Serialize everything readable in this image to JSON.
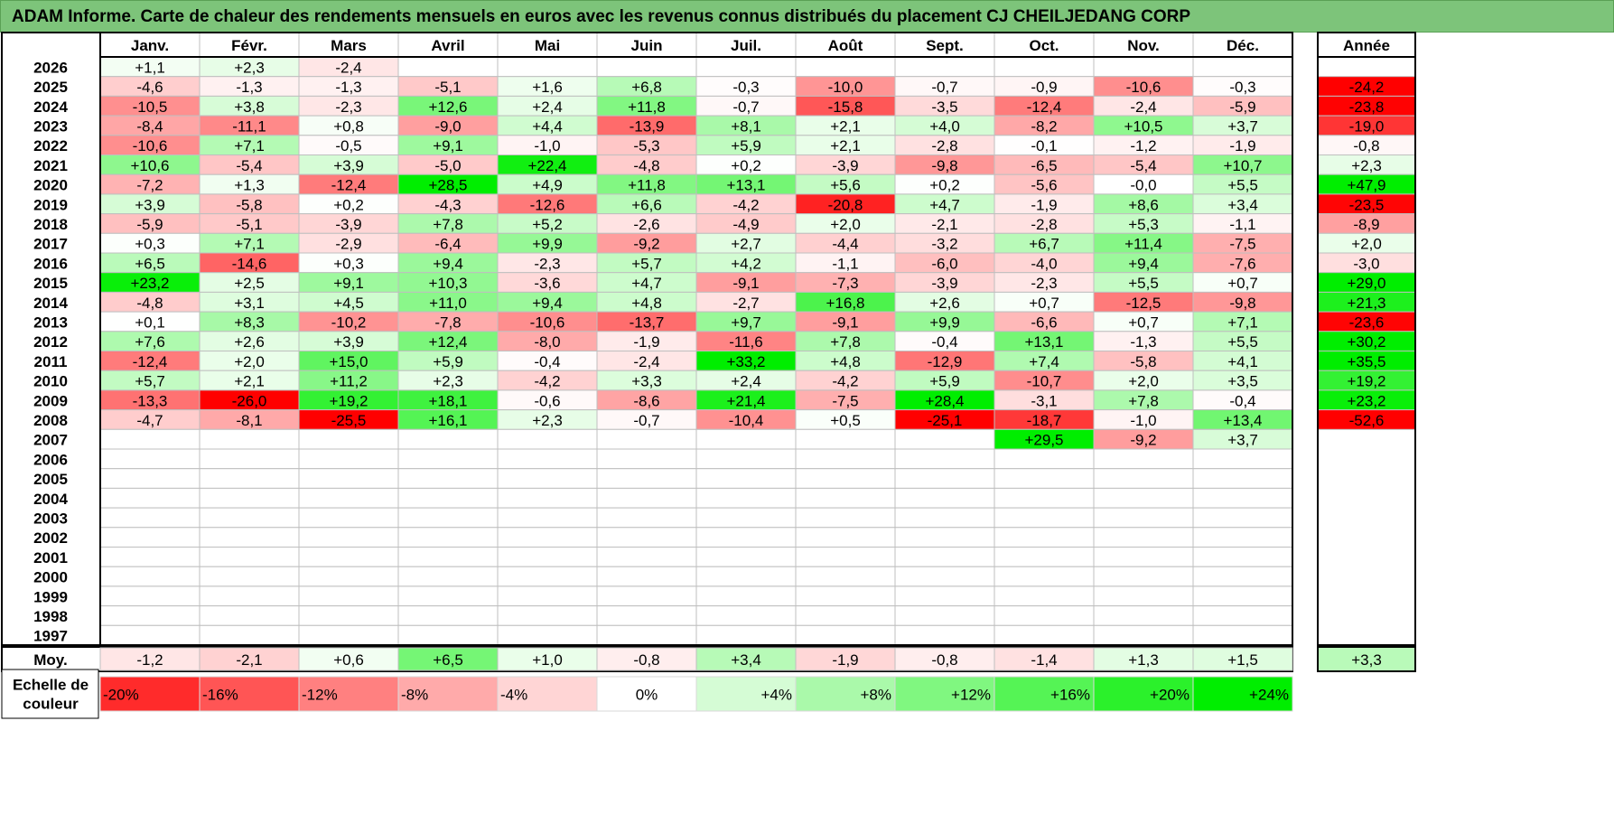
{
  "title": "ADAM Informe. Carte de chaleur des rendements mensuels en euros avec les revenus connus distribués du placement CJ CHEILJEDANG CORP",
  "chart_data": {
    "type": "heatmap",
    "months": [
      "Janv.",
      "Févr.",
      "Mars",
      "Avril",
      "Mai",
      "Juin",
      "Juil.",
      "Août",
      "Sept.",
      "Oct.",
      "Nov.",
      "Déc."
    ],
    "year_header": "Année",
    "years": [
      "2026",
      "2025",
      "2024",
      "2023",
      "2022",
      "2021",
      "2020",
      "2019",
      "2018",
      "2017",
      "2016",
      "2015",
      "2014",
      "2013",
      "2012",
      "2011",
      "2010",
      "2009",
      "2008",
      "2007",
      "2006",
      "2005",
      "2004",
      "2003",
      "2002",
      "2001",
      "2000",
      "1999",
      "1998",
      "1997"
    ],
    "values": [
      [
        "+1,1",
        "+2,3",
        "-2,4",
        "",
        "",
        "",
        "",
        "",
        "",
        "",
        "",
        ""
      ],
      [
        "-4,6",
        "-1,3",
        "-1,3",
        "-5,1",
        "+1,6",
        "+6,8",
        "-0,3",
        "-10,0",
        "-0,7",
        "-0,9",
        "-10,6",
        "-0,3"
      ],
      [
        "-10,5",
        "+3,8",
        "-2,3",
        "+12,6",
        "+2,4",
        "+11,8",
        "-0,7",
        "-15,8",
        "-3,5",
        "-12,4",
        "-2,4",
        "-5,9"
      ],
      [
        "-8,4",
        "-11,1",
        "+0,8",
        "-9,0",
        "+4,4",
        "-13,9",
        "+8,1",
        "+2,1",
        "+4,0",
        "-8,2",
        "+10,5",
        "+3,7"
      ],
      [
        "-10,6",
        "+7,1",
        "-0,5",
        "+9,1",
        "-1,0",
        "-5,3",
        "+5,9",
        "+2,1",
        "-2,8",
        "-0,1",
        "-1,2",
        "-1,9"
      ],
      [
        "+10,6",
        "-5,4",
        "+3,9",
        "-5,0",
        "+22,4",
        "-4,8",
        "+0,2",
        "-3,9",
        "-9,8",
        "-6,5",
        "-5,4",
        "+10,7"
      ],
      [
        "-7,2",
        "+1,3",
        "-12,4",
        "+28,5",
        "+4,9",
        "+11,8",
        "+13,1",
        "+5,6",
        "+0,2",
        "-5,6",
        "-0,0",
        "+5,5"
      ],
      [
        "+3,9",
        "-5,8",
        "+0,2",
        "-4,3",
        "-12,6",
        "+6,6",
        "-4,2",
        "-20,8",
        "+4,7",
        "-1,9",
        "+8,6",
        "+3,4"
      ],
      [
        "-5,9",
        "-5,1",
        "-3,9",
        "+7,8",
        "+5,2",
        "-2,6",
        "-4,9",
        "+2,0",
        "-2,1",
        "-2,8",
        "+5,3",
        "-1,1"
      ],
      [
        "+0,3",
        "+7,1",
        "-2,9",
        "-6,4",
        "+9,9",
        "-9,2",
        "+2,7",
        "-4,4",
        "-3,2",
        "+6,7",
        "+11,4",
        "-7,5"
      ],
      [
        "+6,5",
        "-14,6",
        "+0,3",
        "+9,4",
        "-2,3",
        "+5,7",
        "+4,2",
        "-1,1",
        "-6,0",
        "-4,0",
        "+9,4",
        "-7,6"
      ],
      [
        "+23,2",
        "+2,5",
        "+9,1",
        "+10,3",
        "-3,6",
        "+4,7",
        "-9,1",
        "-7,3",
        "-3,9",
        "-2,3",
        "+5,5",
        "+0,7"
      ],
      [
        "-4,8",
        "+3,1",
        "+4,5",
        "+11,0",
        "+9,4",
        "+4,8",
        "-2,7",
        "+16,8",
        "+2,6",
        "+0,7",
        "-12,5",
        "-9,8"
      ],
      [
        "+0,1",
        "+8,3",
        "-10,2",
        "-7,8",
        "-10,6",
        "-13,7",
        "+9,7",
        "-9,1",
        "+9,9",
        "-6,6",
        "+0,7",
        "+7,1"
      ],
      [
        "+7,6",
        "+2,6",
        "+3,9",
        "+12,4",
        "-8,0",
        "-1,9",
        "-11,6",
        "+7,8",
        "-0,4",
        "+13,1",
        "-1,3",
        "+5,5"
      ],
      [
        "-12,4",
        "+2,0",
        "+15,0",
        "+5,9",
        "-0,4",
        "-2,4",
        "+33,2",
        "+4,8",
        "-12,9",
        "+7,4",
        "-5,8",
        "+4,1"
      ],
      [
        "+5,7",
        "+2,1",
        "+11,2",
        "+2,3",
        "-4,2",
        "+3,3",
        "+2,4",
        "-4,2",
        "+5,9",
        "-10,7",
        "+2,0",
        "+3,5"
      ],
      [
        "-13,3",
        "-26,0",
        "+19,2",
        "+18,1",
        "-0,6",
        "-8,6",
        "+21,4",
        "-7,5",
        "+28,4",
        "-3,1",
        "+7,8",
        "-0,4"
      ],
      [
        "-4,7",
        "-8,1",
        "-25,5",
        "+16,1",
        "+2,3",
        "-0,7",
        "-10,4",
        "+0,5",
        "-25,1",
        "-18,7",
        "-1,0",
        "+13,4"
      ],
      [
        "",
        "",
        "",
        "",
        "",
        "",
        "",
        "",
        "",
        "+29,5",
        "-9,2",
        "+3,7"
      ],
      [
        "",
        "",
        "",
        "",
        "",
        "",
        "",
        "",
        "",
        "",
        "",
        ""
      ],
      [
        "",
        "",
        "",
        "",
        "",
        "",
        "",
        "",
        "",
        "",
        "",
        ""
      ],
      [
        "",
        "",
        "",
        "",
        "",
        "",
        "",
        "",
        "",
        "",
        "",
        ""
      ],
      [
        "",
        "",
        "",
        "",
        "",
        "",
        "",
        "",
        "",
        "",
        "",
        ""
      ],
      [
        "",
        "",
        "",
        "",
        "",
        "",
        "",
        "",
        "",
        "",
        "",
        ""
      ],
      [
        "",
        "",
        "",
        "",
        "",
        "",
        "",
        "",
        "",
        "",
        "",
        ""
      ],
      [
        "",
        "",
        "",
        "",
        "",
        "",
        "",
        "",
        "",
        "",
        "",
        ""
      ],
      [
        "",
        "",
        "",
        "",
        "",
        "",
        "",
        "",
        "",
        "",
        "",
        ""
      ],
      [
        "",
        "",
        "",
        "",
        "",
        "",
        "",
        "",
        "",
        "",
        "",
        ""
      ],
      [
        "",
        "",
        "",
        "",
        "",
        "",
        "",
        "",
        "",
        "",
        "",
        ""
      ]
    ],
    "annual": [
      "",
      "-24,2",
      "-23,8",
      "-19,0",
      "-0,8",
      "+2,3",
      "+47,9",
      "-23,5",
      "-8,9",
      "+2,0",
      "-3,0",
      "+29,0",
      "+21,3",
      "-23,6",
      "+30,2",
      "+35,5",
      "+19,2",
      "+23,2",
      "-52,6",
      "",
      "",
      "",
      "",
      "",
      "",
      "",
      "",
      "",
      "",
      ""
    ],
    "average_label": "Moy.",
    "average": [
      "-1,2",
      "-2,1",
      "+0,6",
      "+6,5",
      "+1,0",
      "-0,8",
      "+3,4",
      "-1,9",
      "-0,8",
      "-1,4",
      "+1,3",
      "+1,5"
    ],
    "average_annual": "+3,3",
    "legend_label": [
      "Echelle de",
      "couleur"
    ],
    "legend": [
      {
        "label": "-20%",
        "value": -20
      },
      {
        "label": "-16%",
        "value": -16
      },
      {
        "label": "-12%",
        "value": -12
      },
      {
        "label": "-8%",
        "value": -8
      },
      {
        "label": "-4%",
        "value": -4
      },
      {
        "label": "0%",
        "value": 0
      },
      {
        "label": "+4%",
        "value": 4
      },
      {
        "label": "+8%",
        "value": 8
      },
      {
        "label": "+12%",
        "value": 12
      },
      {
        "label": "+16%",
        "value": 16
      },
      {
        "label": "+20%",
        "value": 20
      },
      {
        "label": "+24%",
        "value": 24
      }
    ],
    "colors": {
      "negative": "#ff0000",
      "zero": "#ffffff",
      "positive": "#00ee00"
    }
  }
}
